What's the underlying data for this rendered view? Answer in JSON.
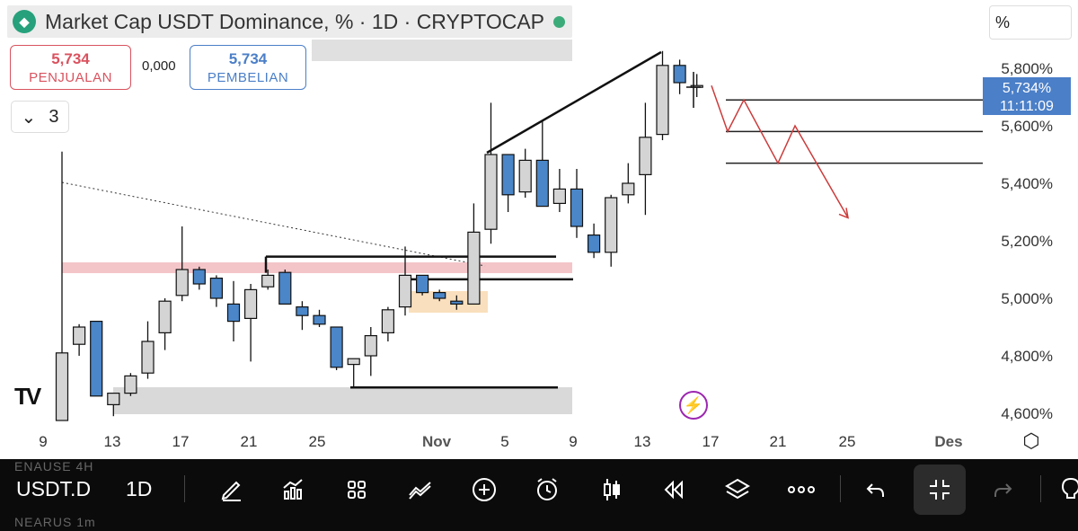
{
  "header": {
    "title": "Market Cap USDT Dominance, % · 1D · CRYPTOCAP",
    "logo_icon": "tether-logo-icon"
  },
  "quote": {
    "sell_value": "5,734",
    "sell_label": "PENJUALAN",
    "spread": "0,000",
    "buy_value": "5,734",
    "buy_label": "PEMBELIAN"
  },
  "indicators": {
    "count": "3"
  },
  "scale": {
    "unit": "%"
  },
  "price_tag": {
    "value": "5,734%",
    "countdown": "11:11:09"
  },
  "toolbar": {
    "symbol": "USDT.D",
    "interval": "1D",
    "ghost_top": "ENAUSE 4H",
    "ghost_bottom": "NEARUS 1m"
  },
  "colors": {
    "up_candle": "#d4d4d4",
    "down_candle": "#4a86c8",
    "resistance_zone": "#f3c5c9",
    "support_zone": "#d9d9d9",
    "demand_zone": "#f9dfbd",
    "projection": "#cc3b3b",
    "accent": "#4b7fc8"
  },
  "chart_data": {
    "type": "candlestick",
    "y_ticks": [
      "5,800%",
      "5,600%",
      "5,400%",
      "5,200%",
      "5,000%",
      "4,800%",
      "4,600%"
    ],
    "x_ticks": [
      "9",
      "13",
      "17",
      "21",
      "25",
      "Nov",
      "5",
      "9",
      "13",
      "17",
      "21",
      "25",
      "Des"
    ],
    "ylim": [
      4.55,
      5.9
    ],
    "candles": [
      {
        "o": 4.55,
        "h": 5.51,
        "l": 4.55,
        "c": 4.81
      },
      {
        "o": 4.84,
        "h": 4.91,
        "l": 4.8,
        "c": 4.9
      },
      {
        "o": 4.92,
        "h": 4.92,
        "l": 4.66,
        "c": 4.66
      },
      {
        "o": 4.63,
        "h": 4.67,
        "l": 4.59,
        "c": 4.67
      },
      {
        "o": 4.67,
        "h": 4.74,
        "l": 4.66,
        "c": 4.73
      },
      {
        "o": 4.74,
        "h": 4.92,
        "l": 4.72,
        "c": 4.85
      },
      {
        "o": 4.88,
        "h": 5.0,
        "l": 4.82,
        "c": 4.99
      },
      {
        "o": 5.01,
        "h": 5.25,
        "l": 4.99,
        "c": 5.1
      },
      {
        "o": 5.1,
        "h": 5.11,
        "l": 5.03,
        "c": 5.05
      },
      {
        "o": 5.07,
        "h": 5.08,
        "l": 4.97,
        "c": 5.0
      },
      {
        "o": 4.98,
        "h": 5.06,
        "l": 4.85,
        "c": 4.92
      },
      {
        "o": 4.93,
        "h": 5.05,
        "l": 4.78,
        "c": 5.03
      },
      {
        "o": 5.04,
        "h": 5.1,
        "l": 5.03,
        "c": 5.08
      },
      {
        "o": 5.09,
        "h": 5.1,
        "l": 4.98,
        "c": 4.98
      },
      {
        "o": 4.97,
        "h": 4.99,
        "l": 4.89,
        "c": 4.94
      },
      {
        "o": 4.94,
        "h": 4.96,
        "l": 4.9,
        "c": 4.91
      },
      {
        "o": 4.9,
        "h": 4.9,
        "l": 4.75,
        "c": 4.76
      },
      {
        "o": 4.77,
        "h": 4.79,
        "l": 4.69,
        "c": 4.79
      },
      {
        "o": 4.8,
        "h": 4.9,
        "l": 4.73,
        "c": 4.87
      },
      {
        "o": 4.88,
        "h": 4.97,
        "l": 4.85,
        "c": 4.96
      },
      {
        "o": 4.97,
        "h": 5.18,
        "l": 4.94,
        "c": 5.08
      },
      {
        "o": 5.08,
        "h": 5.08,
        "l": 5.01,
        "c": 5.02
      },
      {
        "o": 5.02,
        "h": 5.03,
        "l": 4.99,
        "c": 5.0
      },
      {
        "o": 4.99,
        "h": 5.01,
        "l": 4.96,
        "c": 4.98
      },
      {
        "o": 4.98,
        "h": 5.33,
        "l": 4.98,
        "c": 5.23
      },
      {
        "o": 5.24,
        "h": 5.68,
        "l": 5.19,
        "c": 5.5
      },
      {
        "o": 5.5,
        "h": 5.5,
        "l": 5.3,
        "c": 5.36
      },
      {
        "o": 5.37,
        "h": 5.52,
        "l": 5.35,
        "c": 5.48
      },
      {
        "o": 5.48,
        "h": 5.62,
        "l": 5.32,
        "c": 5.32
      },
      {
        "o": 5.33,
        "h": 5.45,
        "l": 5.3,
        "c": 5.38
      },
      {
        "o": 5.38,
        "h": 5.45,
        "l": 5.21,
        "c": 5.25
      },
      {
        "o": 5.22,
        "h": 5.26,
        "l": 5.14,
        "c": 5.16
      },
      {
        "o": 5.16,
        "h": 5.36,
        "l": 5.11,
        "c": 5.35
      },
      {
        "o": 5.36,
        "h": 5.47,
        "l": 5.33,
        "c": 5.4
      },
      {
        "o": 5.43,
        "h": 5.68,
        "l": 5.29,
        "c": 5.56
      },
      {
        "o": 5.57,
        "h": 5.86,
        "l": 5.55,
        "c": 5.81
      },
      {
        "o": 5.81,
        "h": 5.83,
        "l": 5.71,
        "c": 5.75
      },
      {
        "o": 5.74,
        "h": 5.78,
        "l": 5.7,
        "c": 5.74
      }
    ],
    "annotations": {
      "horizontal_lines": [
        5.69,
        5.58,
        5.47,
        5.145,
        5.066,
        4.69
      ],
      "zones": [
        "resistance",
        "demand",
        "support",
        "upper"
      ],
      "projection_path": [
        5.74,
        5.58,
        5.69,
        5.47,
        5.6,
        5.28
      ]
    },
    "grid": false
  }
}
